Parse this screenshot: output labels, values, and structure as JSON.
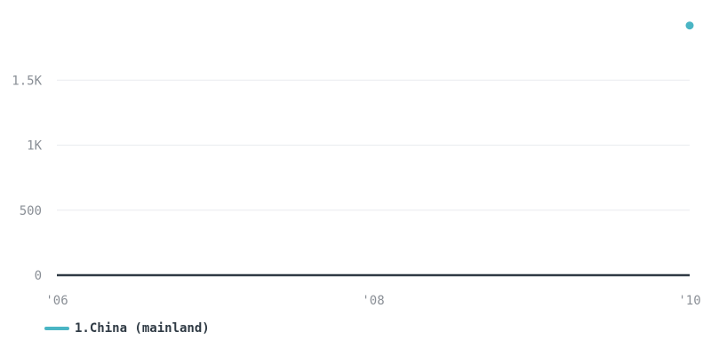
{
  "chart_data": {
    "type": "line",
    "title": "",
    "xlabel": "",
    "ylabel": "",
    "x": [
      2006,
      2010
    ],
    "xlim": [
      2006,
      2010
    ],
    "ylim": [
      0,
      2000
    ],
    "y_ticks": [
      0,
      500,
      1000,
      1500
    ],
    "y_tick_labels": [
      "0",
      "500",
      "1K",
      "1.5K"
    ],
    "x_ticks": [
      2006,
      2008,
      2010
    ],
    "x_tick_labels": [
      "'06",
      "'08",
      "'10"
    ],
    "grid": true,
    "legend_position": "bottom-left",
    "series": [
      {
        "name": "1.China (mainland)",
        "color": "#4ab5c4",
        "values": [
          null,
          1920
        ]
      }
    ]
  }
}
